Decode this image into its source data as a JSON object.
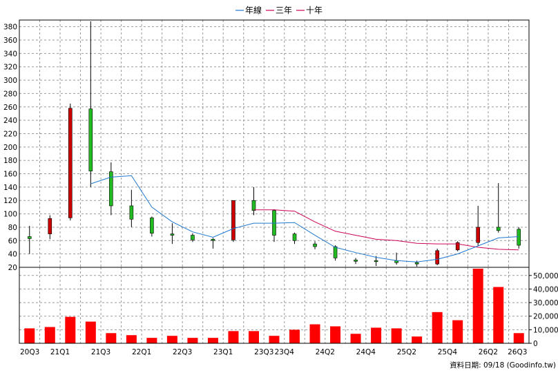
{
  "chart_data": {
    "type": "candlestick-with-volume",
    "legend": [
      {
        "label": "年線",
        "color": "#1f77d0"
      },
      {
        "label": "三年",
        "color": "#cc0055"
      },
      {
        "label": "十年",
        "color": "#cc0055"
      }
    ],
    "legend_position": "top-center",
    "price_ticks": [
      20,
      40,
      60,
      80,
      100,
      120,
      140,
      160,
      180,
      200,
      220,
      240,
      260,
      280,
      300,
      320,
      340,
      360,
      380
    ],
    "price_ylim": [
      20,
      390
    ],
    "volume_ticks": [
      0,
      10000,
      20000,
      30000,
      40000,
      50000
    ],
    "volume_tick_labels": [
      "0",
      "10,000",
      "20,000",
      "30,000",
      "40,000",
      "50,000"
    ],
    "volume_ylim": [
      0,
      56000
    ],
    "x_tick_labels": [
      {
        "i": 0,
        "label": "20Q3"
      },
      {
        "i": 2,
        "label": "21Q1"
      },
      {
        "i": 4,
        "label": "21Q3"
      },
      {
        "i": 6,
        "label": "22Q1"
      },
      {
        "i": 8,
        "label": "22Q3"
      },
      {
        "i": 10,
        "label": "23Q1"
      },
      {
        "i": 12,
        "label": "23Q3"
      },
      {
        "i": 13,
        "label": "23Q4"
      },
      {
        "i": 15,
        "label": "24Q2"
      },
      {
        "i": 17,
        "label": "24Q4"
      },
      {
        "i": 19,
        "label": "25Q2"
      },
      {
        "i": 21,
        "label": "25Q4"
      },
      {
        "i": 23,
        "label": "26Q2"
      },
      {
        "i": 24,
        "label": "26Q3"
      }
    ],
    "candles": [
      {
        "o": 66,
        "h": 82,
        "l": 40,
        "c": 63
      },
      {
        "o": 70,
        "h": 98,
        "l": 62,
        "c": 93
      },
      {
        "o": 94,
        "h": 265,
        "l": 90,
        "c": 258
      },
      {
        "o": 257,
        "h": 388,
        "l": 140,
        "c": 164
      },
      {
        "o": 163,
        "h": 177,
        "l": 98,
        "c": 112
      },
      {
        "o": 112,
        "h": 136,
        "l": 80,
        "c": 92
      },
      {
        "o": 94,
        "h": 96,
        "l": 66,
        "c": 71
      },
      {
        "o": 70,
        "h": 86,
        "l": 55,
        "c": 68
      },
      {
        "o": 68,
        "h": 71,
        "l": 58,
        "c": 61
      },
      {
        "o": 62,
        "h": 64,
        "l": 48,
        "c": 60
      },
      {
        "o": 61,
        "h": 120,
        "l": 58,
        "c": 120
      },
      {
        "o": 120,
        "h": 140,
        "l": 98,
        "c": 105
      },
      {
        "o": 105,
        "h": 107,
        "l": 58,
        "c": 68
      },
      {
        "o": 70,
        "h": 72,
        "l": 55,
        "c": 60
      },
      {
        "o": 55,
        "h": 59,
        "l": 47,
        "c": 51
      },
      {
        "o": 51,
        "h": 53,
        "l": 30,
        "c": 34
      },
      {
        "o": 31,
        "h": 34,
        "l": 25,
        "c": 29
      },
      {
        "o": 30,
        "h": 37,
        "l": 22,
        "c": 29
      },
      {
        "o": 30,
        "h": 42,
        "l": 24,
        "c": 27
      },
      {
        "o": 27,
        "h": 30,
        "l": 21,
        "c": 25
      },
      {
        "o": 25,
        "h": 48,
        "l": 23,
        "c": 45
      },
      {
        "o": 46,
        "h": 59,
        "l": 44,
        "c": 57
      },
      {
        "o": 57,
        "h": 112,
        "l": 52,
        "c": 80
      },
      {
        "o": 80,
        "h": 146,
        "l": 72,
        "c": 75
      },
      {
        "o": 77,
        "h": 80,
        "l": 48,
        "c": 53
      }
    ],
    "annual_line": [
      null,
      null,
      null,
      145,
      155,
      157,
      110,
      88,
      73,
      65,
      78,
      86,
      86,
      87,
      68,
      50,
      42,
      35,
      30,
      28,
      32,
      40,
      52,
      64,
      66
    ],
    "three_year_line": [
      null,
      null,
      null,
      null,
      null,
      null,
      null,
      null,
      null,
      null,
      null,
      106,
      106,
      104,
      88,
      74,
      68,
      62,
      60,
      56,
      55,
      55,
      50,
      47,
      46
    ],
    "volume": [
      11000,
      12000,
      19500,
      16000,
      7500,
      6000,
      4000,
      5500,
      4000,
      4000,
      9000,
      9000,
      5500,
      10000,
      14000,
      12500,
      7000,
      11500,
      11000,
      5000,
      23000,
      17000,
      55000,
      41500,
      7500
    ],
    "colors": {
      "up": "#cc0000",
      "down": "#22bb22",
      "volume": "#ff0000",
      "annual": "#1f77d0",
      "three_year": "#cc0055"
    }
  },
  "footer": {
    "text": "資料日期: 09/18  (Goodinfo.tw)"
  }
}
